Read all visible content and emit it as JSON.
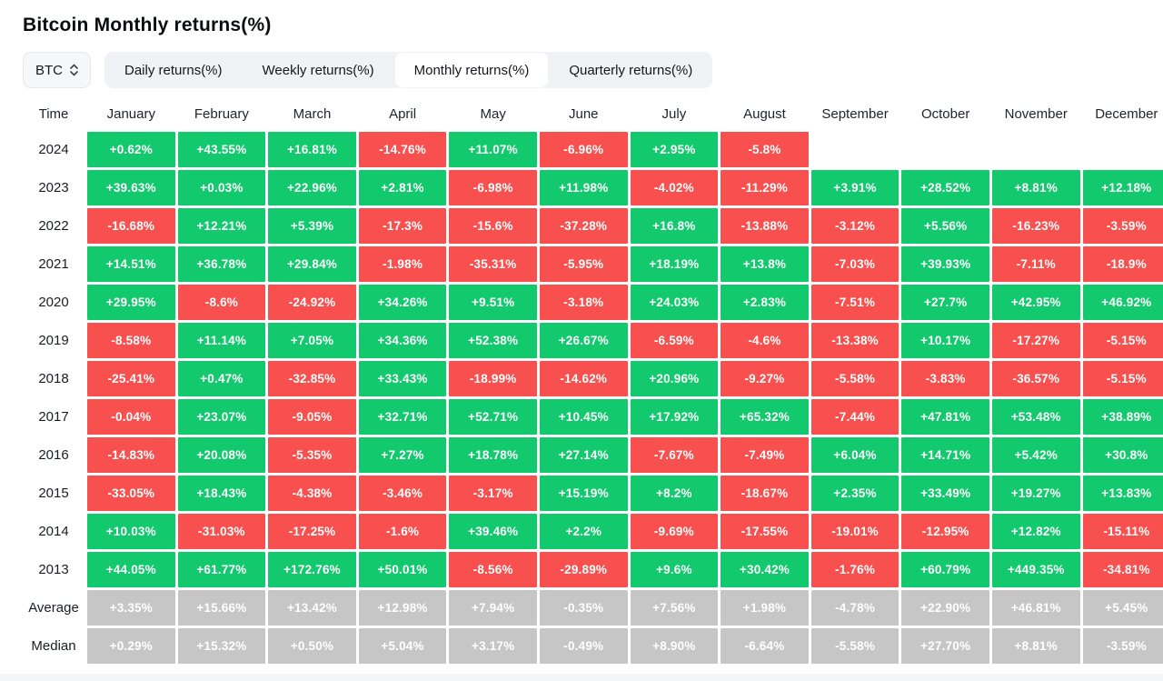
{
  "page": {
    "title": "Bitcoin Monthly returns(%)"
  },
  "controls": {
    "symbol_select": {
      "value": "BTC",
      "icon": "updown-chevrons"
    },
    "tabs": [
      {
        "label": "Daily returns(%)",
        "active": false
      },
      {
        "label": "Weekly returns(%)",
        "active": false
      },
      {
        "label": "Monthly returns(%)",
        "active": true
      },
      {
        "label": "Quarterly returns(%)",
        "active": false
      }
    ]
  },
  "colors": {
    "positive": "#12c96e",
    "negative": "#f8504e",
    "summary": "#c6c6c6",
    "cell_text": "#ffffff"
  },
  "chart_data": {
    "type": "heatmap",
    "title": "Bitcoin Monthly returns(%)",
    "columns": [
      "Time",
      "January",
      "February",
      "March",
      "April",
      "May",
      "June",
      "July",
      "August",
      "September",
      "October",
      "November",
      "December"
    ],
    "rows": [
      {
        "label": "2024",
        "kind": "year",
        "values": [
          "+0.62%",
          "+43.55%",
          "+16.81%",
          "-14.76%",
          "+11.07%",
          "-6.96%",
          "+2.95%",
          "-5.8%",
          "",
          "",
          "",
          ""
        ]
      },
      {
        "label": "2023",
        "kind": "year",
        "values": [
          "+39.63%",
          "+0.03%",
          "+22.96%",
          "+2.81%",
          "-6.98%",
          "+11.98%",
          "-4.02%",
          "-11.29%",
          "+3.91%",
          "+28.52%",
          "+8.81%",
          "+12.18%"
        ]
      },
      {
        "label": "2022",
        "kind": "year",
        "values": [
          "-16.68%",
          "+12.21%",
          "+5.39%",
          "-17.3%",
          "-15.6%",
          "-37.28%",
          "+16.8%",
          "-13.88%",
          "-3.12%",
          "+5.56%",
          "-16.23%",
          "-3.59%"
        ]
      },
      {
        "label": "2021",
        "kind": "year",
        "values": [
          "+14.51%",
          "+36.78%",
          "+29.84%",
          "-1.98%",
          "-35.31%",
          "-5.95%",
          "+18.19%",
          "+13.8%",
          "-7.03%",
          "+39.93%",
          "-7.11%",
          "-18.9%"
        ]
      },
      {
        "label": "2020",
        "kind": "year",
        "values": [
          "+29.95%",
          "-8.6%",
          "-24.92%",
          "+34.26%",
          "+9.51%",
          "-3.18%",
          "+24.03%",
          "+2.83%",
          "-7.51%",
          "+27.7%",
          "+42.95%",
          "+46.92%"
        ]
      },
      {
        "label": "2019",
        "kind": "year",
        "values": [
          "-8.58%",
          "+11.14%",
          "+7.05%",
          "+34.36%",
          "+52.38%",
          "+26.67%",
          "-6.59%",
          "-4.6%",
          "-13.38%",
          "+10.17%",
          "-17.27%",
          "-5.15%"
        ]
      },
      {
        "label": "2018",
        "kind": "year",
        "values": [
          "-25.41%",
          "+0.47%",
          "-32.85%",
          "+33.43%",
          "-18.99%",
          "-14.62%",
          "+20.96%",
          "-9.27%",
          "-5.58%",
          "-3.83%",
          "-36.57%",
          "-5.15%"
        ]
      },
      {
        "label": "2017",
        "kind": "year",
        "values": [
          "-0.04%",
          "+23.07%",
          "-9.05%",
          "+32.71%",
          "+52.71%",
          "+10.45%",
          "+17.92%",
          "+65.32%",
          "-7.44%",
          "+47.81%",
          "+53.48%",
          "+38.89%"
        ]
      },
      {
        "label": "2016",
        "kind": "year",
        "values": [
          "-14.83%",
          "+20.08%",
          "-5.35%",
          "+7.27%",
          "+18.78%",
          "+27.14%",
          "-7.67%",
          "-7.49%",
          "+6.04%",
          "+14.71%",
          "+5.42%",
          "+30.8%"
        ]
      },
      {
        "label": "2015",
        "kind": "year",
        "values": [
          "-33.05%",
          "+18.43%",
          "-4.38%",
          "-3.46%",
          "-3.17%",
          "+15.19%",
          "+8.2%",
          "-18.67%",
          "+2.35%",
          "+33.49%",
          "+19.27%",
          "+13.83%"
        ]
      },
      {
        "label": "2014",
        "kind": "year",
        "values": [
          "+10.03%",
          "-31.03%",
          "-17.25%",
          "-1.6%",
          "+39.46%",
          "+2.2%",
          "-9.69%",
          "-17.55%",
          "-19.01%",
          "-12.95%",
          "+12.82%",
          "-15.11%"
        ]
      },
      {
        "label": "2013",
        "kind": "year",
        "values": [
          "+44.05%",
          "+61.77%",
          "+172.76%",
          "+50.01%",
          "-8.56%",
          "-29.89%",
          "+9.6%",
          "+30.42%",
          "-1.76%",
          "+60.79%",
          "+449.35%",
          "-34.81%"
        ]
      },
      {
        "label": "Average",
        "kind": "summary",
        "values": [
          "+3.35%",
          "+15.66%",
          "+13.42%",
          "+12.98%",
          "+7.94%",
          "-0.35%",
          "+7.56%",
          "+1.98%",
          "-4.78%",
          "+22.90%",
          "+46.81%",
          "+5.45%"
        ]
      },
      {
        "label": "Median",
        "kind": "summary",
        "values": [
          "+0.29%",
          "+15.32%",
          "+0.50%",
          "+5.04%",
          "+3.17%",
          "-0.49%",
          "+8.90%",
          "-6.64%",
          "-5.58%",
          "+27.70%",
          "+8.81%",
          "-3.59%"
        ]
      }
    ]
  }
}
